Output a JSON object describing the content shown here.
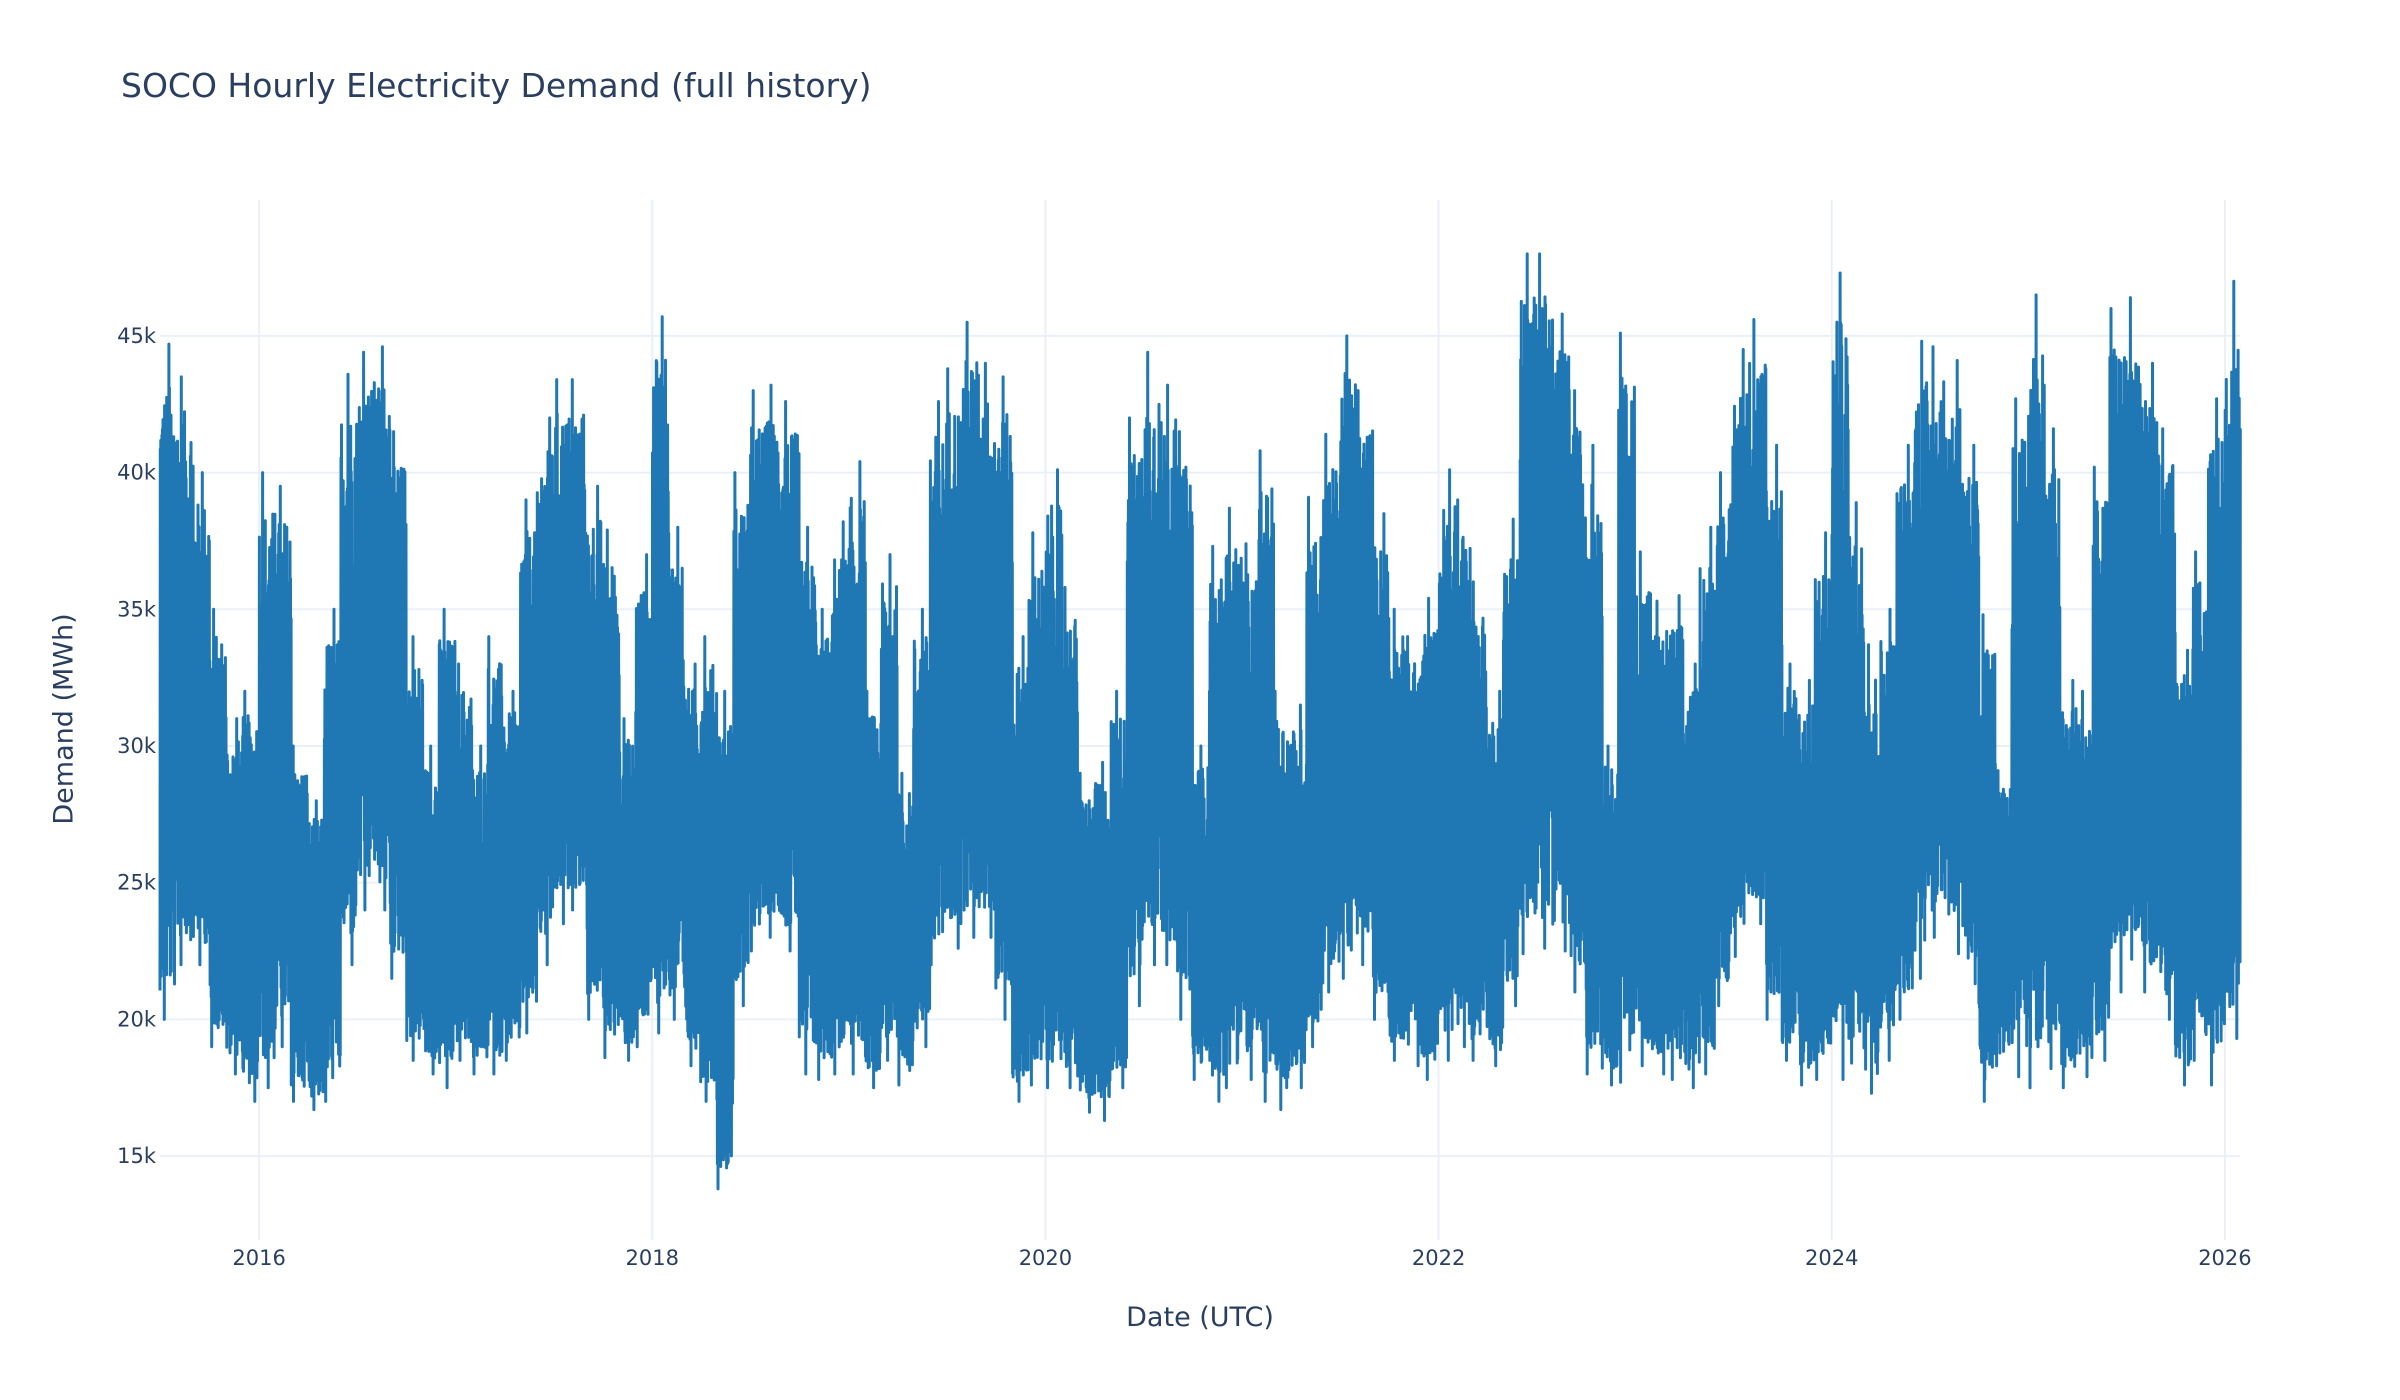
{
  "chart_data": {
    "type": "line",
    "title": "SOCO Hourly Electricity Demand (full history)",
    "xlabel": "Date (UTC)",
    "ylabel": "Demand (MWh)",
    "xlim": [
      "2015-07-01",
      "2026-01-29"
    ],
    "ylim": [
      11930,
      49970
    ],
    "grid": true,
    "legend": "none",
    "line_color": "#1f77b4",
    "grid_color": "#ebf0f8",
    "text_color": "#2a3f5f",
    "x_ticks": [
      {
        "value": "2016-01-01",
        "label": "2016"
      },
      {
        "value": "2018-01-01",
        "label": "2018"
      },
      {
        "value": "2020-01-01",
        "label": "2020"
      },
      {
        "value": "2022-01-01",
        "label": "2022"
      },
      {
        "value": "2024-01-01",
        "label": "2024"
      },
      {
        "value": "2026-01-01",
        "label": "2026"
      }
    ],
    "y_ticks": [
      {
        "value": 15000,
        "label": "15k"
      },
      {
        "value": 20000,
        "label": "20k"
      },
      {
        "value": 25000,
        "label": "25k"
      },
      {
        "value": 30000,
        "label": "30k"
      },
      {
        "value": 35000,
        "label": "35k"
      },
      {
        "value": 40000,
        "label": "40k"
      },
      {
        "value": 45000,
        "label": "45k"
      }
    ],
    "series_note_units": "MWh",
    "monthly_envelope": {
      "start_month": "2015-07",
      "max": [
        44.7,
        43.5,
        40,
        35,
        31,
        32,
        40,
        39.5,
        30,
        28,
        35,
        43.6,
        44.4,
        44.6,
        41.5,
        34,
        30,
        35,
        33,
        30,
        34,
        32,
        39,
        42,
        43.4,
        43.4,
        39.5,
        37.9,
        31,
        37,
        45.7,
        38,
        33,
        34,
        32,
        40,
        43,
        43.2,
        42.6,
        38,
        35,
        38.2,
        40.4,
        32,
        37,
        29,
        35,
        42.6,
        43.8,
        45.5,
        44,
        43.5,
        34,
        37.8,
        40.1,
        35.8,
        29,
        29.4,
        32,
        42,
        44.4,
        43.2,
        41.5,
        30,
        37.3,
        38.7,
        37.4,
        40.8,
        32,
        31.5,
        39.1,
        41.4,
        45,
        43,
        38.5,
        35,
        34,
        35.4,
        40.1,
        39,
        36,
        32,
        38.3,
        48,
        48,
        45.8,
        43,
        41,
        30,
        45.1,
        37.1,
        35.3,
        35.5,
        33,
        38,
        40,
        44.5,
        45.6,
        41,
        33,
        32.4,
        37.8,
        47.3,
        38.9,
        33.7,
        35,
        41,
        44.8,
        44.6,
        44.1,
        41,
        34.8,
        29.1,
        42.7,
        46.5,
        41.6,
        32.4,
        32,
        40.2,
        46,
        46.4,
        44,
        41.6,
        33.5,
        37.1,
        42.7,
        47
      ],
      "min": [
        20,
        22,
        22,
        19,
        18,
        17,
        17.5,
        19,
        17,
        16.7,
        17,
        22,
        24,
        24,
        21.5,
        18.5,
        18,
        17.5,
        18.5,
        18,
        18,
        18.5,
        19.5,
        22,
        23.5,
        24,
        20,
        18.6,
        18.5,
        19,
        19.5,
        20,
        18.3,
        17,
        13.8,
        20.5,
        22.5,
        23,
        22.5,
        18,
        17.8,
        18,
        18,
        17.5,
        18.5,
        17.6,
        19,
        22,
        22.6,
        23,
        23,
        20,
        17,
        17.6,
        17.5,
        17.5,
        16.6,
        16.3,
        17.5,
        20.5,
        22,
        22,
        20,
        17.8,
        17,
        17.5,
        17.8,
        17,
        16.7,
        17.5,
        19,
        21,
        21.5,
        22,
        20,
        18.5,
        18.3,
        17.8,
        18.5,
        19,
        18.5,
        18.3,
        20.5,
        22.4,
        22.6,
        22.5,
        21,
        18,
        17.6,
        17.7,
        18.3,
        18,
        17.8,
        17.5,
        18,
        20.5,
        22.3,
        23.5,
        20,
        18.5,
        17.6,
        17.8,
        17.8,
        18.4,
        17.3,
        18.5,
        20,
        21.5,
        23,
        22.4,
        21.3,
        17,
        18.3,
        17.9,
        17.5,
        18.2,
        17.5,
        17.9,
        18.5,
        21,
        22.2,
        21,
        20,
        17.6,
        18.5,
        17.6,
        19.3
      ],
      "unit": "thousand MWh"
    }
  }
}
